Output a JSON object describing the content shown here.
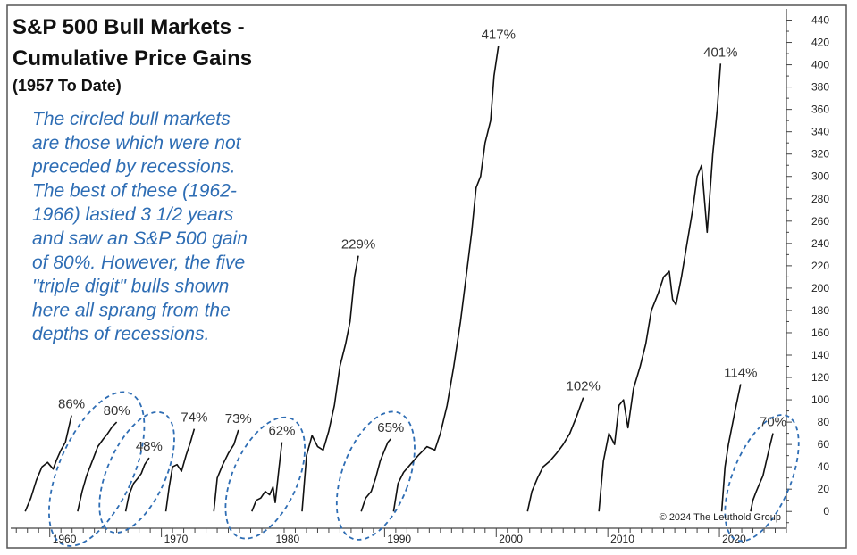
{
  "chart_data": {
    "type": "line",
    "title": "S&P 500 Bull Markets -",
    "title2": "Cumulative Price Gains",
    "subtitle": "(1957 To Date)",
    "annotation_lines": [
      "The circled bull markets",
      "are those which were not",
      "preceded by recessions.",
      "The best of these (1962-",
      "1966) lasted 3 1/2 years",
      "and saw an S&P 500 gain",
      "of 80%. However, the five",
      "\"triple digit\" bulls shown",
      "here all sprang from the",
      "depths of recessions."
    ],
    "credit": "© 2024 The Leuthold Group",
    "xlim": [
      1956.5,
      2026
    ],
    "ylim": [
      -15,
      450
    ],
    "x_ticks": [
      1960,
      1970,
      1980,
      1990,
      2000,
      2010,
      2020
    ],
    "x_tick_labels": [
      "1960",
      "1970",
      "1980",
      "1990",
      "2000",
      "2010",
      "2020"
    ],
    "y_ticks": [
      0,
      20,
      40,
      60,
      80,
      100,
      120,
      140,
      160,
      180,
      200,
      220,
      240,
      260,
      280,
      300,
      320,
      340,
      360,
      380,
      400,
      420,
      440
    ],
    "y_tick_labels": [
      "0",
      "20",
      "40",
      "60",
      "80",
      "100",
      "120",
      "140",
      "160",
      "180",
      "200",
      "220",
      "240",
      "260",
      "280",
      "300",
      "320",
      "340",
      "360",
      "380",
      "400",
      "420",
      "440"
    ],
    "grid": false,
    "series": [
      {
        "x": [
          1957.8,
          1958.3,
          1958.8,
          1959.3,
          1959.8,
          1960.3,
          1960.6,
          1961.0,
          1961.4,
          1961.7,
          1961.95
        ],
        "y": [
          0,
          12,
          28,
          40,
          44,
          38,
          46,
          55,
          62,
          75,
          86
        ]
      },
      {
        "x": [
          1962.5,
          1962.9,
          1963.3,
          1963.8,
          1964.3,
          1964.8,
          1965.2,
          1965.6,
          1966.0
        ],
        "y": [
          0,
          18,
          32,
          45,
          58,
          65,
          70,
          76,
          80
        ]
      },
      {
        "x": [
          1966.8,
          1967.1,
          1967.5,
          1967.9,
          1968.2,
          1968.5,
          1968.9
        ],
        "y": [
          0,
          15,
          25,
          30,
          34,
          42,
          48
        ]
      },
      {
        "x": [
          1970.4,
          1970.7,
          1971.0,
          1971.4,
          1971.8,
          1972.2,
          1972.6,
          1972.95
        ],
        "y": [
          0,
          22,
          40,
          42,
          36,
          50,
          62,
          74
        ]
      },
      {
        "x": [
          1974.7,
          1975.0,
          1975.5,
          1976.0,
          1976.5,
          1976.9
        ],
        "y": [
          0,
          30,
          42,
          52,
          60,
          73
        ]
      },
      {
        "x": [
          1978.1,
          1978.5,
          1978.9,
          1979.3,
          1979.7,
          1980.0,
          1980.2,
          1980.5,
          1980.8
        ],
        "y": [
          0,
          10,
          12,
          18,
          15,
          22,
          8,
          35,
          62
        ]
      },
      {
        "x": [
          1982.6,
          1983.0,
          1983.5,
          1984.0,
          1984.5,
          1985.0,
          1985.5,
          1986.0,
          1986.5,
          1986.9,
          1987.3,
          1987.65
        ],
        "y": [
          0,
          50,
          68,
          58,
          55,
          72,
          95,
          130,
          150,
          170,
          210,
          229
        ]
      },
      {
        "x": [
          1987.9,
          1988.3,
          1988.8,
          1989.2,
          1989.6,
          1990.0,
          1990.3,
          1990.55
        ],
        "y": [
          0,
          12,
          18,
          30,
          45,
          55,
          62,
          65
        ]
      },
      {
        "x": [
          1990.8,
          1991.2,
          1991.7,
          1992.3,
          1993.0,
          1993.8,
          1994.5,
          1995.0,
          1995.6,
          1996.2,
          1996.8,
          1997.3,
          1997.8,
          1998.2,
          1998.6,
          1999.0,
          1999.5,
          1999.8,
          2000.2
        ],
        "y": [
          0,
          25,
          35,
          42,
          50,
          58,
          55,
          70,
          95,
          130,
          170,
          210,
          250,
          290,
          300,
          330,
          350,
          390,
          417
        ]
      },
      {
        "x": [
          2002.8,
          2003.2,
          2003.7,
          2004.2,
          2004.8,
          2005.4,
          2006.0,
          2006.6,
          2007.2,
          2007.8
        ],
        "y": [
          0,
          18,
          30,
          40,
          45,
          52,
          60,
          70,
          85,
          102
        ]
      },
      {
        "x": [
          2009.2,
          2009.6,
          2010.1,
          2010.6,
          2011.0,
          2011.4,
          2011.8,
          2012.3,
          2012.9,
          2013.4,
          2013.9,
          2014.5,
          2015.0,
          2015.5,
          2015.8,
          2016.1,
          2016.6,
          2017.1,
          2017.6,
          2018.0,
          2018.4,
          2018.9,
          2019.4,
          2019.8,
          2020.1
        ],
        "y": [
          0,
          45,
          70,
          60,
          95,
          100,
          75,
          110,
          130,
          150,
          180,
          195,
          210,
          215,
          190,
          185,
          210,
          240,
          270,
          300,
          310,
          250,
          320,
          360,
          401
        ]
      },
      {
        "x": [
          2020.2,
          2020.5,
          2020.8,
          2021.1,
          2021.5,
          2021.9
        ],
        "y": [
          0,
          40,
          60,
          75,
          95,
          114
        ]
      },
      {
        "x": [
          2022.8,
          2023.0,
          2023.3,
          2023.6,
          2023.9,
          2024.2,
          2024.5,
          2024.8
        ],
        "y": [
          0,
          10,
          18,
          25,
          32,
          45,
          58,
          70
        ]
      }
    ],
    "peak_labels": [
      {
        "text": "86%",
        "x": 1961.95,
        "y": 86
      },
      {
        "text": "80%",
        "x": 1966.0,
        "y": 80
      },
      {
        "text": "48%",
        "x": 1968.9,
        "y": 48
      },
      {
        "text": "74%",
        "x": 1972.95,
        "y": 74
      },
      {
        "text": "73%",
        "x": 1976.9,
        "y": 73
      },
      {
        "text": "62%",
        "x": 1980.8,
        "y": 62
      },
      {
        "text": "229%",
        "x": 1987.65,
        "y": 229
      },
      {
        "text": "65%",
        "x": 1990.55,
        "y": 65
      },
      {
        "text": "417%",
        "x": 2000.2,
        "y": 417
      },
      {
        "text": "102%",
        "x": 2007.8,
        "y": 102
      },
      {
        "text": "401%",
        "x": 2020.1,
        "y": 401
      },
      {
        "text": "114%",
        "x": 2021.9,
        "y": 114
      },
      {
        "text": "70%",
        "x": 2024.8,
        "y": 70
      }
    ],
    "circled_markets": [
      {
        "cx": 1964.2,
        "cy": 38,
        "rx": 3.3,
        "ry": 74,
        "rotate": 24
      },
      {
        "cx": 1967.8,
        "cy": 35,
        "rx": 2.6,
        "ry": 58,
        "rotate": 24
      },
      {
        "cx": 1979.3,
        "cy": 30,
        "rx": 2.9,
        "ry": 58,
        "rotate": 24
      },
      {
        "cx": 1989.2,
        "cy": 32,
        "rx": 3.0,
        "ry": 60,
        "rotate": 20
      },
      {
        "cx": 2023.8,
        "cy": 30,
        "rx": 2.6,
        "ry": 60,
        "rotate": 22
      }
    ],
    "colors": {
      "line": "#111111",
      "annotation": "#2e6db4",
      "circle": "#2e6db4",
      "label": "#333333"
    }
  }
}
